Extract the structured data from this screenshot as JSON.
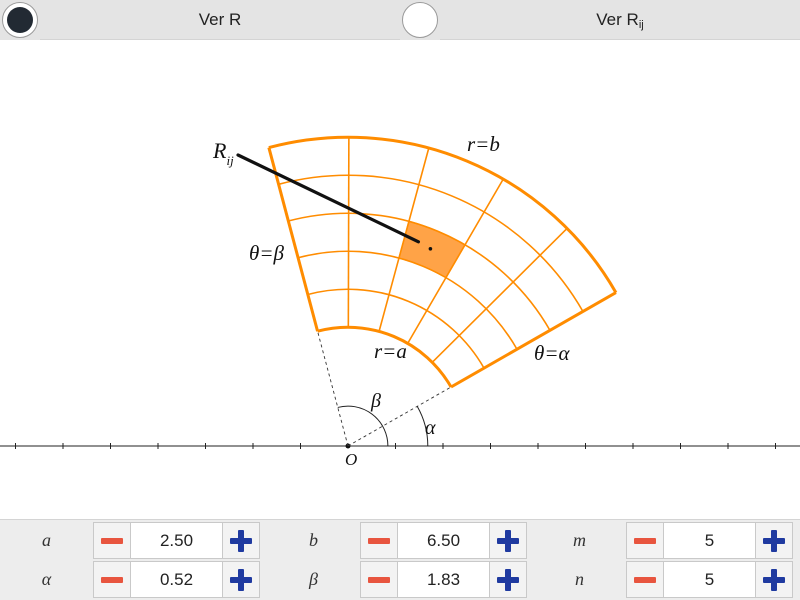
{
  "toggles": {
    "ver_r": {
      "label": "Ver R",
      "selected": true
    },
    "ver_rij": {
      "label_main": "Ver R",
      "label_sub": "ij",
      "selected": false
    }
  },
  "diagram": {
    "labels": {
      "r_b": "r=b",
      "r_a": "r=a",
      "theta_beta": "θ=β",
      "theta_alpha": "θ=α",
      "rij_main": "R",
      "rij_sub": "ij",
      "beta": "β",
      "alpha": "α",
      "origin": "O"
    },
    "colors": {
      "region": "#ff8c00",
      "cell_fill": "#ffa347",
      "pointer": "#111111",
      "axis": "#222222"
    }
  },
  "controls": {
    "row1": [
      {
        "name": "a",
        "label": "a",
        "value": "2.50"
      },
      {
        "name": "b",
        "label": "b",
        "value": "6.50"
      },
      {
        "name": "m",
        "label": "m",
        "value": "5"
      }
    ],
    "row2": [
      {
        "name": "alpha",
        "label": "α",
        "value": "0.52"
      },
      {
        "name": "beta",
        "label": "β",
        "value": "1.83"
      },
      {
        "name": "n",
        "label": "n",
        "value": "5"
      }
    ],
    "icons": {
      "decrease": "minus-icon",
      "increase": "plus-icon"
    }
  },
  "selected_cell": {
    "radial_index": 2,
    "angular_index": 2
  }
}
